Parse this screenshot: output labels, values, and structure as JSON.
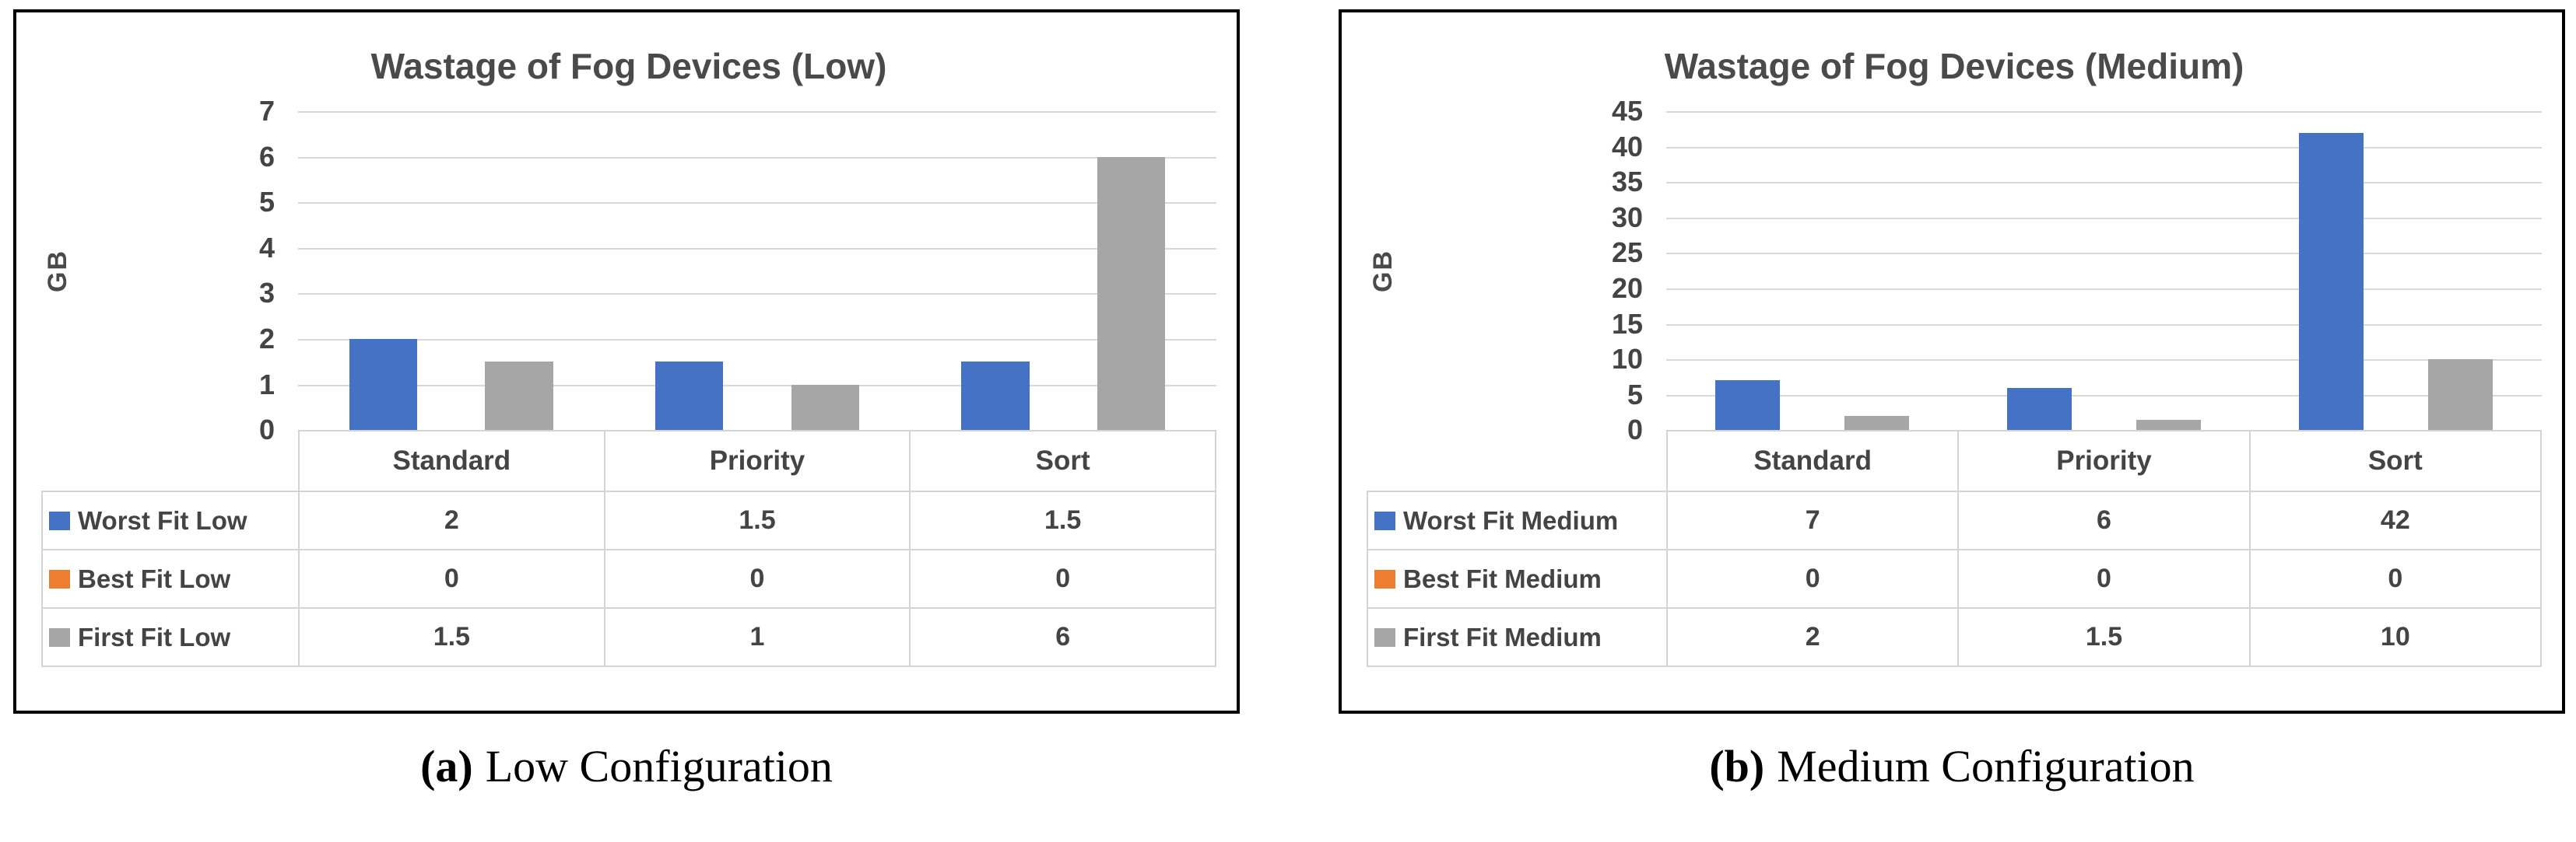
{
  "colors": {
    "worst_fit": "#4472C4",
    "best_fit": "#ED7D31",
    "first_fit": "#A6A6A6",
    "text": "#444444",
    "gridline": "#d9d9d9",
    "panel_border": "#000000"
  },
  "chart_data": [
    {
      "type": "bar",
      "title": "Wastage of Fog Devices (Low)",
      "xlabel": "",
      "ylabel": "GB",
      "categories": [
        "Standard",
        "Priority",
        "Sort"
      ],
      "series": [
        {
          "name": "Worst Fit Low",
          "color": "#4472C4",
          "values": [
            2,
            1.5,
            1.5
          ]
        },
        {
          "name": "Best Fit Low",
          "color": "#ED7D31",
          "values": [
            0,
            0,
            0
          ]
        },
        {
          "name": "First Fit Low",
          "color": "#A6A6A6",
          "values": [
            1.5,
            1,
            6
          ]
        }
      ],
      "ylim": [
        0,
        7
      ],
      "ytick_step": 1,
      "grid": true,
      "legend_position": "data-table-left"
    },
    {
      "type": "bar",
      "title": "Wastage of Fog Devices (Medium)",
      "xlabel": "",
      "ylabel": "GB",
      "categories": [
        "Standard",
        "Priority",
        "Sort"
      ],
      "series": [
        {
          "name": "Worst Fit Medium",
          "color": "#4472C4",
          "values": [
            7,
            6,
            42
          ]
        },
        {
          "name": "Best Fit Medium",
          "color": "#ED7D31",
          "values": [
            0,
            0,
            0
          ]
        },
        {
          "name": "First Fit Medium",
          "color": "#A6A6A6",
          "values": [
            2,
            1.5,
            10
          ]
        }
      ],
      "ylim": [
        0,
        45
      ],
      "ytick_step": 5,
      "grid": true,
      "legend_position": "data-table-left"
    }
  ],
  "captions": [
    {
      "marker": "(a)",
      "text": "Low Configuration"
    },
    {
      "marker": "(b)",
      "text": "Medium Configuration"
    }
  ]
}
